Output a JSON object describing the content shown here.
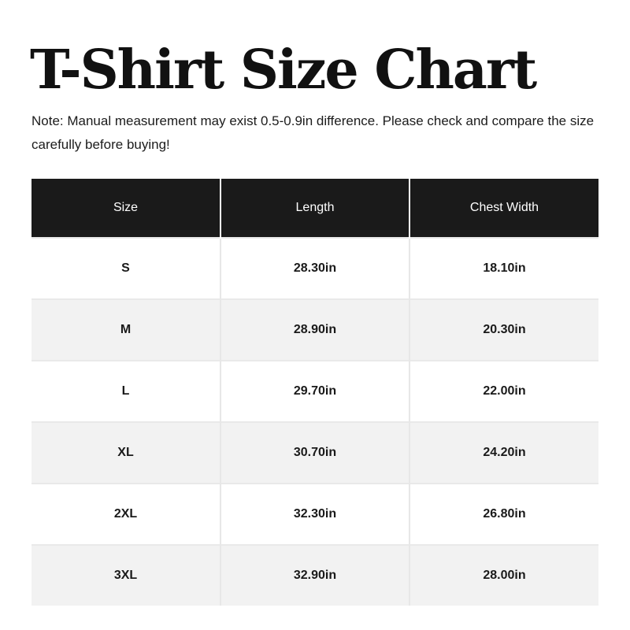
{
  "header": {
    "title": "T-Shirt Size Chart",
    "note_line1": "Note: Manual measurement may exist 0.5-0.9in difference. Please check and compare the size",
    "note_line2": "carefully before buying!"
  },
  "table": {
    "columns": [
      "Size",
      "Length",
      "Chest Width"
    ],
    "rows": [
      {
        "size": "S",
        "length": "28.30in",
        "chest_width": "18.10in"
      },
      {
        "size": "M",
        "length": "28.90in",
        "chest_width": "20.30in"
      },
      {
        "size": "L",
        "length": "29.70in",
        "chest_width": "22.00in"
      },
      {
        "size": "XL",
        "length": "30.70in",
        "chest_width": "24.20in"
      },
      {
        "size": "2XL",
        "length": "32.30in",
        "chest_width": "26.80in"
      },
      {
        "size": "3XL",
        "length": "32.90in",
        "chest_width": "28.00in"
      }
    ]
  },
  "colors": {
    "header_bg": "#1a1a1a",
    "header_text": "#ffffff",
    "row_bg": "#ffffff",
    "row_alt_bg": "#f2f2f2",
    "body_text": "#1a1a1a",
    "divider_body": "#e7e7e7",
    "divider_header": "#ffffff"
  }
}
